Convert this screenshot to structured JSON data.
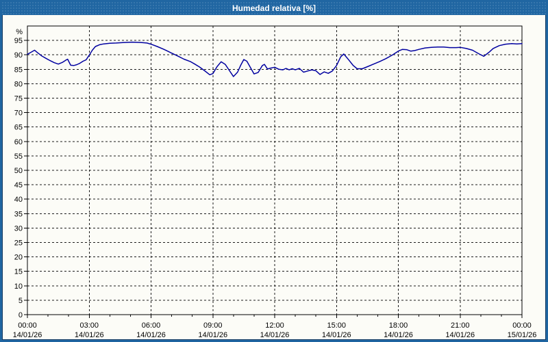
{
  "window": {
    "title": "Humedad relativa [%]"
  },
  "colors": {
    "accent_blue": "#2066A2",
    "frame_line": "#12385E",
    "canvas_bg": "#FCFCF7",
    "grid_color": "#1A1A1A",
    "axis_color": "#000000",
    "series_color": "#0000A0",
    "title_text": "#FFFFFF",
    "tick_text": "#000000"
  },
  "chart_data": {
    "type": "line",
    "title": "Humedad relativa [%]",
    "ylabel": "%",
    "xlabel": "",
    "ylim": [
      0,
      100
    ],
    "grid": "dashed",
    "legend": "none",
    "y_axis": {
      "unit": "%",
      "min": 0,
      "max": 100,
      "tick_step": 5,
      "tick_labels": [
        "0",
        "5",
        "10",
        "15",
        "20",
        "25",
        "30",
        "35",
        "40",
        "45",
        "50",
        "55",
        "60",
        "65",
        "70",
        "75",
        "80",
        "85",
        "90",
        "95"
      ]
    },
    "x_axis": {
      "hours_span": 24,
      "major_tick_hours": 3,
      "minor_tick_hours": 1,
      "ticks": [
        {
          "hour": 0,
          "time": "00:00",
          "date": "14/01/26"
        },
        {
          "hour": 3,
          "time": "03:00",
          "date": "14/01/26"
        },
        {
          "hour": 6,
          "time": "06:00",
          "date": "14/01/26"
        },
        {
          "hour": 9,
          "time": "09:00",
          "date": "14/01/26"
        },
        {
          "hour": 12,
          "time": "12:00",
          "date": "14/01/26"
        },
        {
          "hour": 15,
          "time": "15:00",
          "date": "14/01/26"
        },
        {
          "hour": 18,
          "time": "18:00",
          "date": "14/01/26"
        },
        {
          "hour": 21,
          "time": "21:00",
          "date": "14/01/26"
        },
        {
          "hour": 24,
          "time": "00:00",
          "date": "15/01/26"
        }
      ]
    },
    "series": [
      {
        "name": "Humedad relativa",
        "color": "#0000A0",
        "points": [
          [
            0.0,
            90.2
          ],
          [
            0.2,
            91.0
          ],
          [
            0.35,
            91.6
          ],
          [
            0.5,
            90.7
          ],
          [
            0.7,
            89.6
          ],
          [
            0.9,
            88.8
          ],
          [
            1.1,
            88.0
          ],
          [
            1.3,
            87.3
          ],
          [
            1.5,
            86.8
          ],
          [
            1.7,
            87.4
          ],
          [
            1.85,
            88.1
          ],
          [
            1.95,
            88.5
          ],
          [
            2.1,
            86.4
          ],
          [
            2.25,
            86.3
          ],
          [
            2.4,
            86.6
          ],
          [
            2.55,
            87.1
          ],
          [
            2.7,
            87.8
          ],
          [
            2.85,
            88.3
          ],
          [
            3.0,
            89.9
          ],
          [
            3.15,
            91.6
          ],
          [
            3.3,
            92.9
          ],
          [
            3.5,
            93.5
          ],
          [
            3.7,
            93.8
          ],
          [
            4.0,
            94.0
          ],
          [
            4.3,
            94.1
          ],
          [
            4.7,
            94.3
          ],
          [
            5.1,
            94.4
          ],
          [
            5.5,
            94.3
          ],
          [
            5.8,
            94.1
          ],
          [
            6.0,
            93.7
          ],
          [
            6.3,
            92.9
          ],
          [
            6.6,
            92.0
          ],
          [
            6.8,
            91.3
          ],
          [
            7.0,
            90.6
          ],
          [
            7.3,
            89.6
          ],
          [
            7.6,
            88.5
          ],
          [
            7.9,
            87.7
          ],
          [
            8.1,
            86.9
          ],
          [
            8.35,
            85.8
          ],
          [
            8.6,
            84.5
          ],
          [
            8.85,
            83.1
          ],
          [
            9.0,
            83.5
          ],
          [
            9.2,
            85.9
          ],
          [
            9.4,
            87.6
          ],
          [
            9.6,
            86.7
          ],
          [
            9.8,
            84.6
          ],
          [
            10.0,
            82.5
          ],
          [
            10.2,
            84.0
          ],
          [
            10.35,
            86.4
          ],
          [
            10.5,
            88.4
          ],
          [
            10.65,
            87.8
          ],
          [
            10.8,
            85.9
          ],
          [
            11.0,
            83.4
          ],
          [
            11.2,
            83.9
          ],
          [
            11.4,
            86.3
          ],
          [
            11.5,
            86.7
          ],
          [
            11.65,
            85.1
          ],
          [
            11.8,
            85.4
          ],
          [
            12.0,
            85.7
          ],
          [
            12.2,
            85.0
          ],
          [
            12.4,
            84.8
          ],
          [
            12.55,
            85.3
          ],
          [
            12.7,
            84.8
          ],
          [
            12.85,
            85.2
          ],
          [
            13.0,
            84.8
          ],
          [
            13.2,
            85.3
          ],
          [
            13.4,
            84.0
          ],
          [
            13.6,
            84.4
          ],
          [
            13.8,
            84.8
          ],
          [
            14.0,
            84.5
          ],
          [
            14.2,
            83.2
          ],
          [
            14.4,
            84.1
          ],
          [
            14.6,
            83.6
          ],
          [
            14.8,
            84.4
          ],
          [
            15.0,
            86.3
          ],
          [
            15.2,
            89.3
          ],
          [
            15.35,
            90.3
          ],
          [
            15.6,
            88.2
          ],
          [
            15.8,
            86.4
          ],
          [
            16.0,
            85.2
          ],
          [
            16.25,
            85.2
          ],
          [
            16.5,
            85.9
          ],
          [
            16.8,
            86.8
          ],
          [
            17.1,
            87.7
          ],
          [
            17.4,
            88.7
          ],
          [
            17.7,
            89.9
          ],
          [
            18.0,
            91.3
          ],
          [
            18.2,
            91.9
          ],
          [
            18.4,
            91.8
          ],
          [
            18.6,
            91.3
          ],
          [
            18.8,
            91.5
          ],
          [
            19.0,
            91.9
          ],
          [
            19.3,
            92.4
          ],
          [
            19.6,
            92.6
          ],
          [
            19.9,
            92.7
          ],
          [
            20.2,
            92.7
          ],
          [
            20.5,
            92.5
          ],
          [
            20.8,
            92.5
          ],
          [
            21.0,
            92.6
          ],
          [
            21.3,
            92.2
          ],
          [
            21.6,
            91.6
          ],
          [
            21.9,
            90.4
          ],
          [
            22.15,
            89.5
          ],
          [
            22.4,
            90.9
          ],
          [
            22.6,
            92.2
          ],
          [
            22.9,
            93.2
          ],
          [
            23.2,
            93.7
          ],
          [
            23.5,
            93.9
          ],
          [
            23.75,
            93.8
          ],
          [
            24.0,
            93.9
          ]
        ]
      }
    ]
  }
}
